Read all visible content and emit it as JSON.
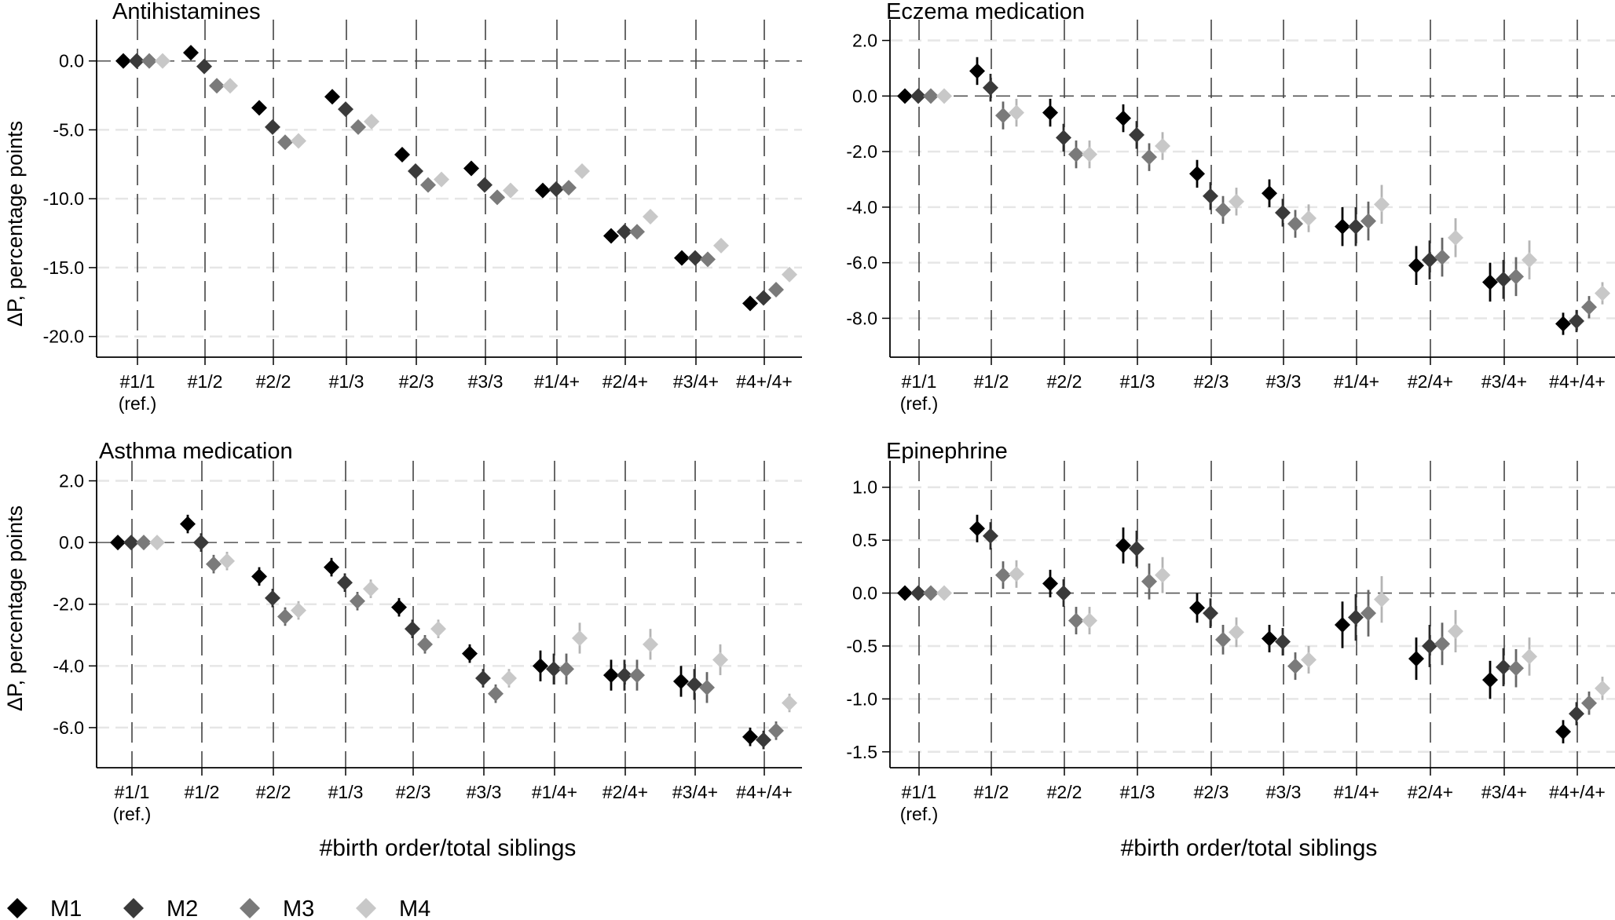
{
  "figure": {
    "ylabel": "ΔP, percentage points",
    "xlabel": "#birth order/total siblings",
    "legend": {
      "placement": "bottom-left",
      "entries": [
        {
          "label": "M1",
          "color": "#000000"
        },
        {
          "label": "M2",
          "color": "#3a3a3a"
        },
        {
          "label": "M3",
          "color": "#7a7a7a"
        },
        {
          "label": "M4",
          "color": "#c8c8c8"
        }
      ]
    }
  },
  "chart_data": [
    {
      "type": "scatter",
      "title": "Antihistamines",
      "position": "top-left",
      "categories": [
        "#1/1",
        "#1/2",
        "#2/2",
        "#1/3",
        "#2/3",
        "#3/3",
        "#1/4+",
        "#2/4+",
        "#3/4+",
        "#4+/4+"
      ],
      "ref_note": "(ref.)",
      "yticks": [
        "0.0",
        "-5.0",
        "-10.0",
        "-15.0",
        "-20.0"
      ],
      "ylim": [
        -21.5,
        3.0
      ],
      "grid": true,
      "reference_line": 0,
      "series": [
        {
          "name": "M1",
          "values": [
            0.0,
            0.6,
            -3.4,
            -2.6,
            -6.8,
            -7.8,
            -9.4,
            -12.7,
            -14.3,
            -17.6
          ],
          "ci": [
            0.0,
            0.3,
            0.3,
            0.3,
            0.3,
            0.3,
            0.4,
            0.4,
            0.4,
            0.4
          ]
        },
        {
          "name": "M2",
          "values": [
            0.0,
            -0.4,
            -4.8,
            -3.5,
            -8.0,
            -9.0,
            -9.3,
            -12.4,
            -14.3,
            -17.2
          ],
          "ci": [
            0.0,
            0.3,
            0.3,
            0.3,
            0.3,
            0.3,
            0.4,
            0.4,
            0.4,
            0.4
          ]
        },
        {
          "name": "M3",
          "values": [
            0.0,
            -1.8,
            -5.9,
            -4.8,
            -9.0,
            -9.9,
            -9.2,
            -12.4,
            -14.4,
            -16.6
          ],
          "ci": [
            0.0,
            0.3,
            0.3,
            0.3,
            0.3,
            0.3,
            0.4,
            0.4,
            0.4,
            0.4
          ]
        },
        {
          "name": "M4",
          "values": [
            0.0,
            -1.8,
            -5.8,
            -4.4,
            -8.6,
            -9.4,
            -8.0,
            -11.3,
            -13.4,
            -15.5
          ],
          "ci": [
            0.0,
            0.3,
            0.3,
            0.3,
            0.3,
            0.3,
            0.4,
            0.4,
            0.4,
            0.4
          ]
        }
      ]
    },
    {
      "type": "scatter",
      "title": "Eczema medication",
      "position": "top-right",
      "categories": [
        "#1/1",
        "#1/2",
        "#2/2",
        "#1/3",
        "#2/3",
        "#3/3",
        "#1/4+",
        "#2/4+",
        "#3/4+",
        "#4+/4+"
      ],
      "ref_note": "(ref.)",
      "yticks": [
        "2.0",
        "0.0",
        "-2.0",
        "-4.0",
        "-6.0",
        "-8.0"
      ],
      "ylim": [
        -9.4,
        2.75
      ],
      "grid": true,
      "reference_line": 0,
      "series": [
        {
          "name": "M1",
          "values": [
            0.0,
            0.9,
            -0.6,
            -0.8,
            -2.8,
            -3.5,
            -4.7,
            -6.1,
            -6.7,
            -8.2
          ],
          "ci": [
            0.0,
            0.5,
            0.5,
            0.5,
            0.5,
            0.5,
            0.7,
            0.7,
            0.7,
            0.4
          ]
        },
        {
          "name": "M2",
          "values": [
            0.0,
            0.3,
            -1.5,
            -1.4,
            -3.6,
            -4.2,
            -4.7,
            -5.9,
            -6.6,
            -8.1
          ],
          "ci": [
            0.0,
            0.5,
            0.5,
            0.5,
            0.5,
            0.5,
            0.7,
            0.7,
            0.7,
            0.4
          ]
        },
        {
          "name": "M3",
          "values": [
            0.0,
            -0.7,
            -2.1,
            -2.2,
            -4.1,
            -4.6,
            -4.5,
            -5.8,
            -6.5,
            -7.6
          ],
          "ci": [
            0.0,
            0.5,
            0.5,
            0.5,
            0.5,
            0.5,
            0.7,
            0.7,
            0.7,
            0.4
          ]
        },
        {
          "name": "M4",
          "values": [
            0.0,
            -0.6,
            -2.1,
            -1.8,
            -3.8,
            -4.4,
            -3.9,
            -5.1,
            -5.9,
            -7.1
          ],
          "ci": [
            0.0,
            0.5,
            0.5,
            0.5,
            0.5,
            0.5,
            0.7,
            0.7,
            0.7,
            0.4
          ]
        }
      ]
    },
    {
      "type": "scatter",
      "title": "Asthma medication",
      "position": "bottom-left",
      "categories": [
        "#1/1",
        "#1/2",
        "#2/2",
        "#1/3",
        "#2/3",
        "#3/3",
        "#1/4+",
        "#2/4+",
        "#3/4+",
        "#4+/4+"
      ],
      "ref_note": "(ref.)",
      "yticks": [
        "2.0",
        "0.0",
        "-2.0",
        "-4.0",
        "-6.0"
      ],
      "ylim": [
        -7.3,
        2.65
      ],
      "grid": true,
      "reference_line": 0,
      "series": [
        {
          "name": "M1",
          "values": [
            0.0,
            0.6,
            -1.1,
            -0.8,
            -2.1,
            -3.6,
            -4.0,
            -4.3,
            -4.5,
            -6.3
          ],
          "ci": [
            0.0,
            0.3,
            0.3,
            0.3,
            0.3,
            0.3,
            0.5,
            0.5,
            0.5,
            0.3
          ]
        },
        {
          "name": "M2",
          "values": [
            0.0,
            0.0,
            -1.8,
            -1.3,
            -2.8,
            -4.4,
            -4.1,
            -4.3,
            -4.6,
            -6.4
          ],
          "ci": [
            0.0,
            0.3,
            0.3,
            0.3,
            0.3,
            0.3,
            0.5,
            0.5,
            0.5,
            0.3
          ]
        },
        {
          "name": "M3",
          "values": [
            0.0,
            -0.7,
            -2.4,
            -1.9,
            -3.3,
            -4.9,
            -4.1,
            -4.3,
            -4.7,
            -6.1
          ],
          "ci": [
            0.0,
            0.3,
            0.3,
            0.3,
            0.3,
            0.3,
            0.5,
            0.5,
            0.5,
            0.3
          ]
        },
        {
          "name": "M4",
          "values": [
            0.0,
            -0.6,
            -2.2,
            -1.5,
            -2.8,
            -4.4,
            -3.1,
            -3.3,
            -3.8,
            -5.2
          ],
          "ci": [
            0.0,
            0.3,
            0.3,
            0.3,
            0.3,
            0.3,
            0.5,
            0.5,
            0.5,
            0.3
          ]
        }
      ]
    },
    {
      "type": "scatter",
      "title": "Epinephrine",
      "position": "bottom-right",
      "categories": [
        "#1/1",
        "#1/2",
        "#2/2",
        "#1/3",
        "#2/3",
        "#3/3",
        "#1/4+",
        "#2/4+",
        "#3/4+",
        "#4+/4+"
      ],
      "ref_note": "(ref.)",
      "yticks": [
        "1.0",
        "0.5",
        "0.0",
        "-0.5",
        "-1.0",
        "-1.5"
      ],
      "ylim": [
        -1.65,
        1.25
      ],
      "grid": true,
      "reference_line": 0,
      "series": [
        {
          "name": "M1",
          "values": [
            0.0,
            0.61,
            0.09,
            0.45,
            -0.14,
            -0.43,
            -0.3,
            -0.62,
            -0.82,
            -1.31
          ],
          "ci": [
            0.0,
            0.13,
            0.13,
            0.17,
            0.14,
            0.13,
            0.22,
            0.2,
            0.18,
            0.11
          ]
        },
        {
          "name": "M2",
          "values": [
            0.0,
            0.54,
            0.0,
            0.42,
            -0.19,
            -0.46,
            -0.23,
            -0.5,
            -0.7,
            -1.14
          ],
          "ci": [
            0.0,
            0.13,
            0.13,
            0.17,
            0.14,
            0.13,
            0.22,
            0.2,
            0.18,
            0.11
          ]
        },
        {
          "name": "M3",
          "values": [
            0.0,
            0.17,
            -0.26,
            0.11,
            -0.44,
            -0.69,
            -0.19,
            -0.48,
            -0.71,
            -1.04
          ],
          "ci": [
            0.0,
            0.13,
            0.13,
            0.17,
            0.14,
            0.13,
            0.22,
            0.2,
            0.18,
            0.11
          ]
        },
        {
          "name": "M4",
          "values": [
            0.0,
            0.18,
            -0.26,
            0.17,
            -0.37,
            -0.63,
            -0.06,
            -0.36,
            -0.6,
            -0.9
          ],
          "ci": [
            0.0,
            0.13,
            0.13,
            0.17,
            0.14,
            0.13,
            0.22,
            0.2,
            0.18,
            0.11
          ]
        }
      ]
    }
  ]
}
